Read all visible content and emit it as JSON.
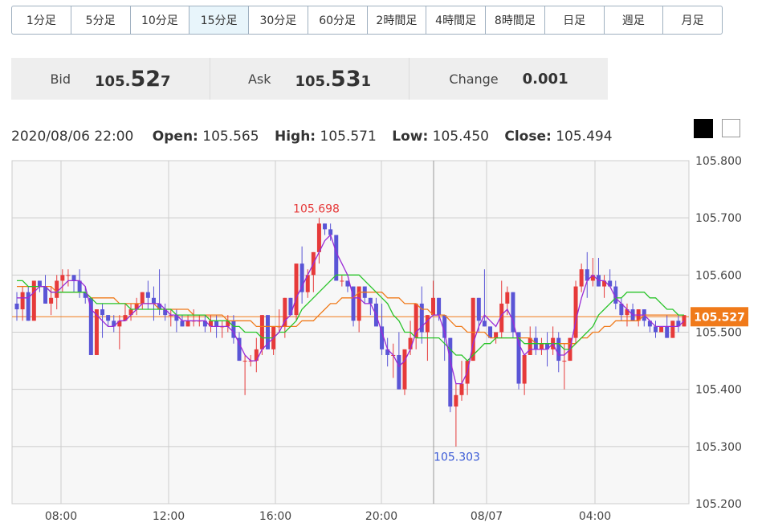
{
  "timeframes": [
    {
      "label": "1分足",
      "active": false
    },
    {
      "label": "5分足",
      "active": false
    },
    {
      "label": "10分足",
      "active": false
    },
    {
      "label": "15分足",
      "active": true
    },
    {
      "label": "30分足",
      "active": false
    },
    {
      "label": "60分足",
      "active": false
    },
    {
      "label": "2時間足",
      "active": false
    },
    {
      "label": "4時間足",
      "active": false
    },
    {
      "label": "8時間足",
      "active": false
    },
    {
      "label": "日足",
      "active": false
    },
    {
      "label": "週足",
      "active": false
    },
    {
      "label": "月足",
      "active": false
    }
  ],
  "quote": {
    "bid_label": "Bid",
    "bid_main": "105.",
    "bid_big": "52",
    "bid_small": "7",
    "ask_label": "Ask",
    "ask_main": "105.",
    "ask_big": "53",
    "ask_small": "1",
    "change_label": "Change",
    "change_value": "0.001"
  },
  "ohlc": {
    "datetime": "2020/08/06 22:00",
    "open_label": "Open:",
    "open": "105.565",
    "high_label": "High:",
    "high": "105.571",
    "low_label": "Low:",
    "low": "105.450",
    "close_label": "Close:",
    "close": "105.494"
  },
  "colors": {
    "up": "#e63a3a",
    "down": "#5a55d6",
    "ma_fast": "#9a2ad6",
    "ma_mid": "#29c429",
    "ma_slow": "#f07a1a",
    "price_tag": "#f07a1a",
    "cursor": "#999999"
  },
  "chart_data": {
    "type": "candlestick",
    "ylim": [
      105.2,
      105.8
    ],
    "y_ticks": [
      "105.800",
      "105.700",
      "105.600",
      "105.500",
      "105.400",
      "105.300",
      "105.200"
    ],
    "x_ticks": [
      "08:00",
      "12:00",
      "16:00",
      "20:00",
      "08/07",
      "04:00"
    ],
    "current_price": "105.527",
    "high_annotation": "105.698",
    "low_annotation": "105.303",
    "candles": [
      [
        105.55,
        105.57,
        105.52,
        105.54
      ],
      [
        105.54,
        105.58,
        105.52,
        105.57
      ],
      [
        105.57,
        105.58,
        105.52,
        105.52
      ],
      [
        105.52,
        105.59,
        105.52,
        105.59
      ],
      [
        105.59,
        105.59,
        105.57,
        105.58
      ],
      [
        105.58,
        105.6,
        105.55,
        105.55
      ],
      [
        105.55,
        105.58,
        105.53,
        105.56
      ],
      [
        105.56,
        105.6,
        105.54,
        105.59
      ],
      [
        105.59,
        105.61,
        105.57,
        105.6
      ],
      [
        105.6,
        105.61,
        105.58,
        105.6
      ],
      [
        105.6,
        105.6,
        105.57,
        105.59
      ],
      [
        105.59,
        105.61,
        105.56,
        105.57
      ],
      [
        105.57,
        105.58,
        105.55,
        105.56
      ],
      [
        105.56,
        105.56,
        105.46,
        105.46
      ],
      [
        105.46,
        105.54,
        105.46,
        105.54
      ],
      [
        105.54,
        105.55,
        105.49,
        105.53
      ],
      [
        105.53,
        105.53,
        105.51,
        105.52
      ],
      [
        105.52,
        105.53,
        105.5,
        105.51
      ],
      [
        105.51,
        105.53,
        105.47,
        105.52
      ],
      [
        105.52,
        105.55,
        105.52,
        105.53
      ],
      [
        105.53,
        105.55,
        105.52,
        105.54
      ],
      [
        105.54,
        105.56,
        105.53,
        105.55
      ],
      [
        105.55,
        105.57,
        105.54,
        105.57
      ],
      [
        105.57,
        105.59,
        105.54,
        105.56
      ],
      [
        105.56,
        105.58,
        105.52,
        105.55
      ],
      [
        105.55,
        105.61,
        105.53,
        105.54
      ],
      [
        105.54,
        105.55,
        105.52,
        105.53
      ],
      [
        105.53,
        105.54,
        105.51,
        105.53
      ],
      [
        105.53,
        105.54,
        105.5,
        105.52
      ],
      [
        105.52,
        105.53,
        105.51,
        105.51
      ],
      [
        105.51,
        105.53,
        105.51,
        105.52
      ],
      [
        105.52,
        105.54,
        105.51,
        105.52
      ],
      [
        105.52,
        105.53,
        105.51,
        105.52
      ],
      [
        105.52,
        105.53,
        105.5,
        105.51
      ],
      [
        105.51,
        105.53,
        105.5,
        105.52
      ],
      [
        105.52,
        105.53,
        105.49,
        105.51
      ],
      [
        105.51,
        105.52,
        105.49,
        105.51
      ],
      [
        105.51,
        105.53,
        105.5,
        105.52
      ],
      [
        105.52,
        105.53,
        105.48,
        105.49
      ],
      [
        105.49,
        105.5,
        105.45,
        105.45
      ],
      [
        105.45,
        105.46,
        105.39,
        105.45
      ],
      [
        105.45,
        105.46,
        105.44,
        105.45
      ],
      [
        105.45,
        105.49,
        105.43,
        105.47
      ],
      [
        105.47,
        105.53,
        105.46,
        105.53
      ],
      [
        105.53,
        105.53,
        105.47,
        105.47
      ],
      [
        105.47,
        105.51,
        105.46,
        105.51
      ],
      [
        105.51,
        105.54,
        105.5,
        105.51
      ],
      [
        105.51,
        105.56,
        105.49,
        105.56
      ],
      [
        105.56,
        105.56,
        105.53,
        105.53
      ],
      [
        105.53,
        105.62,
        105.52,
        105.62
      ],
      [
        105.62,
        105.65,
        105.55,
        105.57
      ],
      [
        105.57,
        105.61,
        105.56,
        105.6
      ],
      [
        105.6,
        105.64,
        105.57,
        105.64
      ],
      [
        105.64,
        105.7,
        105.62,
        105.69
      ],
      [
        105.69,
        105.69,
        105.67,
        105.68
      ],
      [
        105.68,
        105.69,
        105.66,
        105.67
      ],
      [
        105.67,
        105.67,
        105.59,
        105.59
      ],
      [
        105.59,
        105.6,
        105.58,
        105.59
      ],
      [
        105.59,
        105.59,
        105.57,
        105.58
      ],
      [
        105.58,
        105.58,
        105.51,
        105.52
      ],
      [
        105.52,
        105.58,
        105.5,
        105.58
      ],
      [
        105.58,
        105.58,
        105.55,
        105.56
      ],
      [
        105.56,
        105.56,
        105.53,
        105.55
      ],
      [
        105.55,
        105.56,
        105.51,
        105.51
      ],
      [
        105.51,
        105.55,
        105.46,
        105.47
      ],
      [
        105.47,
        105.49,
        105.44,
        105.46
      ],
      [
        105.46,
        105.48,
        105.42,
        105.46
      ],
      [
        105.46,
        105.5,
        105.4,
        105.4
      ],
      [
        105.4,
        105.47,
        105.39,
        105.47
      ],
      [
        105.47,
        105.52,
        105.46,
        105.49
      ],
      [
        105.49,
        105.55,
        105.47,
        105.55
      ],
      [
        105.55,
        105.58,
        105.48,
        105.5
      ],
      [
        105.5,
        105.53,
        105.45,
        105.53
      ],
      [
        105.53,
        105.59,
        105.53,
        105.56
      ],
      [
        105.56,
        105.56,
        105.52,
        105.53
      ],
      [
        105.53,
        105.53,
        105.45,
        105.49
      ],
      [
        105.49,
        105.49,
        105.36,
        105.37
      ],
      [
        105.37,
        105.41,
        105.3,
        105.39
      ],
      [
        105.39,
        105.45,
        105.38,
        105.41
      ],
      [
        105.41,
        105.45,
        105.39,
        105.45
      ],
      [
        105.45,
        105.56,
        105.45,
        105.56
      ],
      [
        105.56,
        105.56,
        105.5,
        105.52
      ],
      [
        105.52,
        105.61,
        105.51,
        105.51
      ],
      [
        105.51,
        105.51,
        105.49,
        105.49
      ],
      [
        105.49,
        105.5,
        105.48,
        105.5
      ],
      [
        105.5,
        105.59,
        105.49,
        105.55
      ],
      [
        105.55,
        105.58,
        105.53,
        105.57
      ],
      [
        105.57,
        105.57,
        105.49,
        105.5
      ],
      [
        105.5,
        105.5,
        105.4,
        105.41
      ],
      [
        105.41,
        105.46,
        105.39,
        105.46
      ],
      [
        105.46,
        105.51,
        105.46,
        105.49
      ],
      [
        105.49,
        105.51,
        105.46,
        105.47
      ],
      [
        105.47,
        105.49,
        105.46,
        105.48
      ],
      [
        105.48,
        105.5,
        105.44,
        105.47
      ],
      [
        105.47,
        105.51,
        105.46,
        105.49
      ],
      [
        105.49,
        105.5,
        105.43,
        105.45
      ],
      [
        105.45,
        105.48,
        105.4,
        105.45
      ],
      [
        105.45,
        105.49,
        105.45,
        105.49
      ],
      [
        105.49,
        105.59,
        105.48,
        105.58
      ],
      [
        105.58,
        105.62,
        105.57,
        105.61
      ],
      [
        105.61,
        105.64,
        105.56,
        105.59
      ],
      [
        105.59,
        105.63,
        105.58,
        105.6
      ],
      [
        105.6,
        105.63,
        105.58,
        105.58
      ],
      [
        105.58,
        105.6,
        105.56,
        105.59
      ],
      [
        105.59,
        105.61,
        105.58,
        105.58
      ],
      [
        105.58,
        105.59,
        105.54,
        105.55
      ],
      [
        105.55,
        105.56,
        105.52,
        105.53
      ],
      [
        105.53,
        105.55,
        105.51,
        105.54
      ],
      [
        105.54,
        105.55,
        105.52,
        105.52
      ],
      [
        105.52,
        105.54,
        105.51,
        105.54
      ],
      [
        105.54,
        105.54,
        105.51,
        105.52
      ],
      [
        105.52,
        105.52,
        105.5,
        105.51
      ],
      [
        105.51,
        105.52,
        105.49,
        105.5
      ],
      [
        105.5,
        105.51,
        105.5,
        105.51
      ],
      [
        105.51,
        105.53,
        105.49,
        105.49
      ],
      [
        105.49,
        105.52,
        105.49,
        105.52
      ],
      [
        105.52,
        105.53,
        105.5,
        105.51
      ],
      [
        105.51,
        105.53,
        105.51,
        105.53
      ]
    ],
    "ma_fast": [
      105.56,
      105.56,
      105.56,
      105.57,
      105.58,
      105.58,
      105.57,
      105.57,
      105.58,
      105.59,
      105.59,
      105.59,
      105.58,
      105.54,
      105.53,
      105.52,
      105.51,
      105.51,
      105.52,
      105.52,
      105.53,
      105.54,
      105.55,
      105.55,
      105.55,
      105.55,
      105.54,
      105.53,
      105.53,
      105.52,
      105.52,
      105.52,
      105.52,
      105.52,
      105.51,
      105.51,
      105.51,
      105.51,
      105.5,
      105.48,
      105.46,
      105.45,
      105.45,
      105.47,
      105.48,
      105.49,
      105.5,
      105.52,
      105.53,
      105.56,
      105.58,
      105.6,
      105.62,
      105.64,
      105.66,
      105.67,
      105.64,
      105.62,
      105.6,
      105.56,
      105.56,
      105.55,
      105.55,
      105.53,
      105.5,
      105.47,
      105.46,
      105.44,
      105.45,
      105.47,
      105.5,
      105.51,
      105.52,
      105.53,
      105.53,
      105.5,
      105.45,
      105.41,
      105.41,
      105.43,
      105.48,
      105.51,
      105.53,
      105.52,
      105.51,
      105.53,
      105.54,
      105.52,
      105.48,
      105.46,
      105.47,
      105.47,
      105.47,
      105.47,
      105.48,
      105.46,
      105.46,
      105.47,
      105.52,
      105.56,
      105.59,
      105.6,
      105.59,
      105.59,
      105.58,
      105.56,
      105.55,
      105.54,
      105.53,
      105.53,
      105.53,
      105.52,
      105.51,
      105.51,
      105.51,
      105.51,
      105.51,
      105.52
    ],
    "ma_mid": [
      105.59,
      105.59,
      105.58,
      105.58,
      105.58,
      105.58,
      105.57,
      105.57,
      105.57,
      105.57,
      105.57,
      105.57,
      105.57,
      105.56,
      105.55,
      105.55,
      105.55,
      105.55,
      105.55,
      105.55,
      105.54,
      105.54,
      105.54,
      105.54,
      105.54,
      105.54,
      105.54,
      105.54,
      105.53,
      105.53,
      105.53,
      105.53,
      105.53,
      105.53,
      105.52,
      105.52,
      105.52,
      105.52,
      105.51,
      105.51,
      105.5,
      105.5,
      105.5,
      105.49,
      105.49,
      105.49,
      105.5,
      105.5,
      105.51,
      105.52,
      105.54,
      105.55,
      105.56,
      105.57,
      105.58,
      105.59,
      105.6,
      105.6,
      105.6,
      105.6,
      105.6,
      105.59,
      105.58,
      105.57,
      105.56,
      105.55,
      105.53,
      105.52,
      105.5,
      105.5,
      105.49,
      105.49,
      105.49,
      105.49,
      105.49,
      105.48,
      105.47,
      105.46,
      105.46,
      105.45,
      105.46,
      105.47,
      105.48,
      105.48,
      105.49,
      105.49,
      105.49,
      105.49,
      105.49,
      105.48,
      105.48,
      105.48,
      105.48,
      105.48,
      105.48,
      105.48,
      105.47,
      105.47,
      105.48,
      105.49,
      105.5,
      105.51,
      105.53,
      105.54,
      105.55,
      105.56,
      105.56,
      105.57,
      105.57,
      105.57,
      105.57,
      105.56,
      105.56,
      105.55,
      105.54,
      105.54,
      105.53,
      105.53
    ],
    "ma_slow": [
      105.58,
      105.58,
      105.58,
      105.58,
      105.58,
      105.58,
      105.58,
      105.57,
      105.57,
      105.57,
      105.57,
      105.57,
      105.57,
      105.56,
      105.56,
      105.56,
      105.56,
      105.56,
      105.55,
      105.55,
      105.55,
      105.55,
      105.55,
      105.55,
      105.55,
      105.54,
      105.54,
      105.54,
      105.54,
      105.54,
      105.54,
      105.53,
      105.53,
      105.53,
      105.53,
      105.53,
      105.53,
      105.52,
      105.52,
      105.52,
      105.52,
      105.52,
      105.51,
      105.51,
      105.51,
      105.51,
      105.51,
      105.51,
      105.51,
      105.51,
      105.52,
      105.52,
      105.52,
      105.53,
      105.54,
      105.55,
      105.55,
      105.56,
      105.56,
      105.56,
      105.57,
      105.57,
      105.57,
      105.57,
      105.57,
      105.56,
      105.56,
      105.56,
      105.55,
      105.55,
      105.55,
      105.54,
      105.54,
      105.53,
      105.53,
      105.53,
      105.52,
      105.51,
      105.51,
      105.5,
      105.5,
      105.5,
      105.5,
      105.49,
      105.49,
      105.49,
      105.49,
      105.49,
      105.49,
      105.49,
      105.49,
      105.48,
      105.48,
      105.48,
      105.48,
      105.48,
      105.48,
      105.48,
      105.48,
      105.49,
      105.49,
      105.5,
      105.5,
      105.51,
      105.51,
      105.52,
      105.52,
      105.52,
      105.52,
      105.52,
      105.53,
      105.53,
      105.53,
      105.53,
      105.53,
      105.53,
      105.53,
      105.53
    ]
  }
}
